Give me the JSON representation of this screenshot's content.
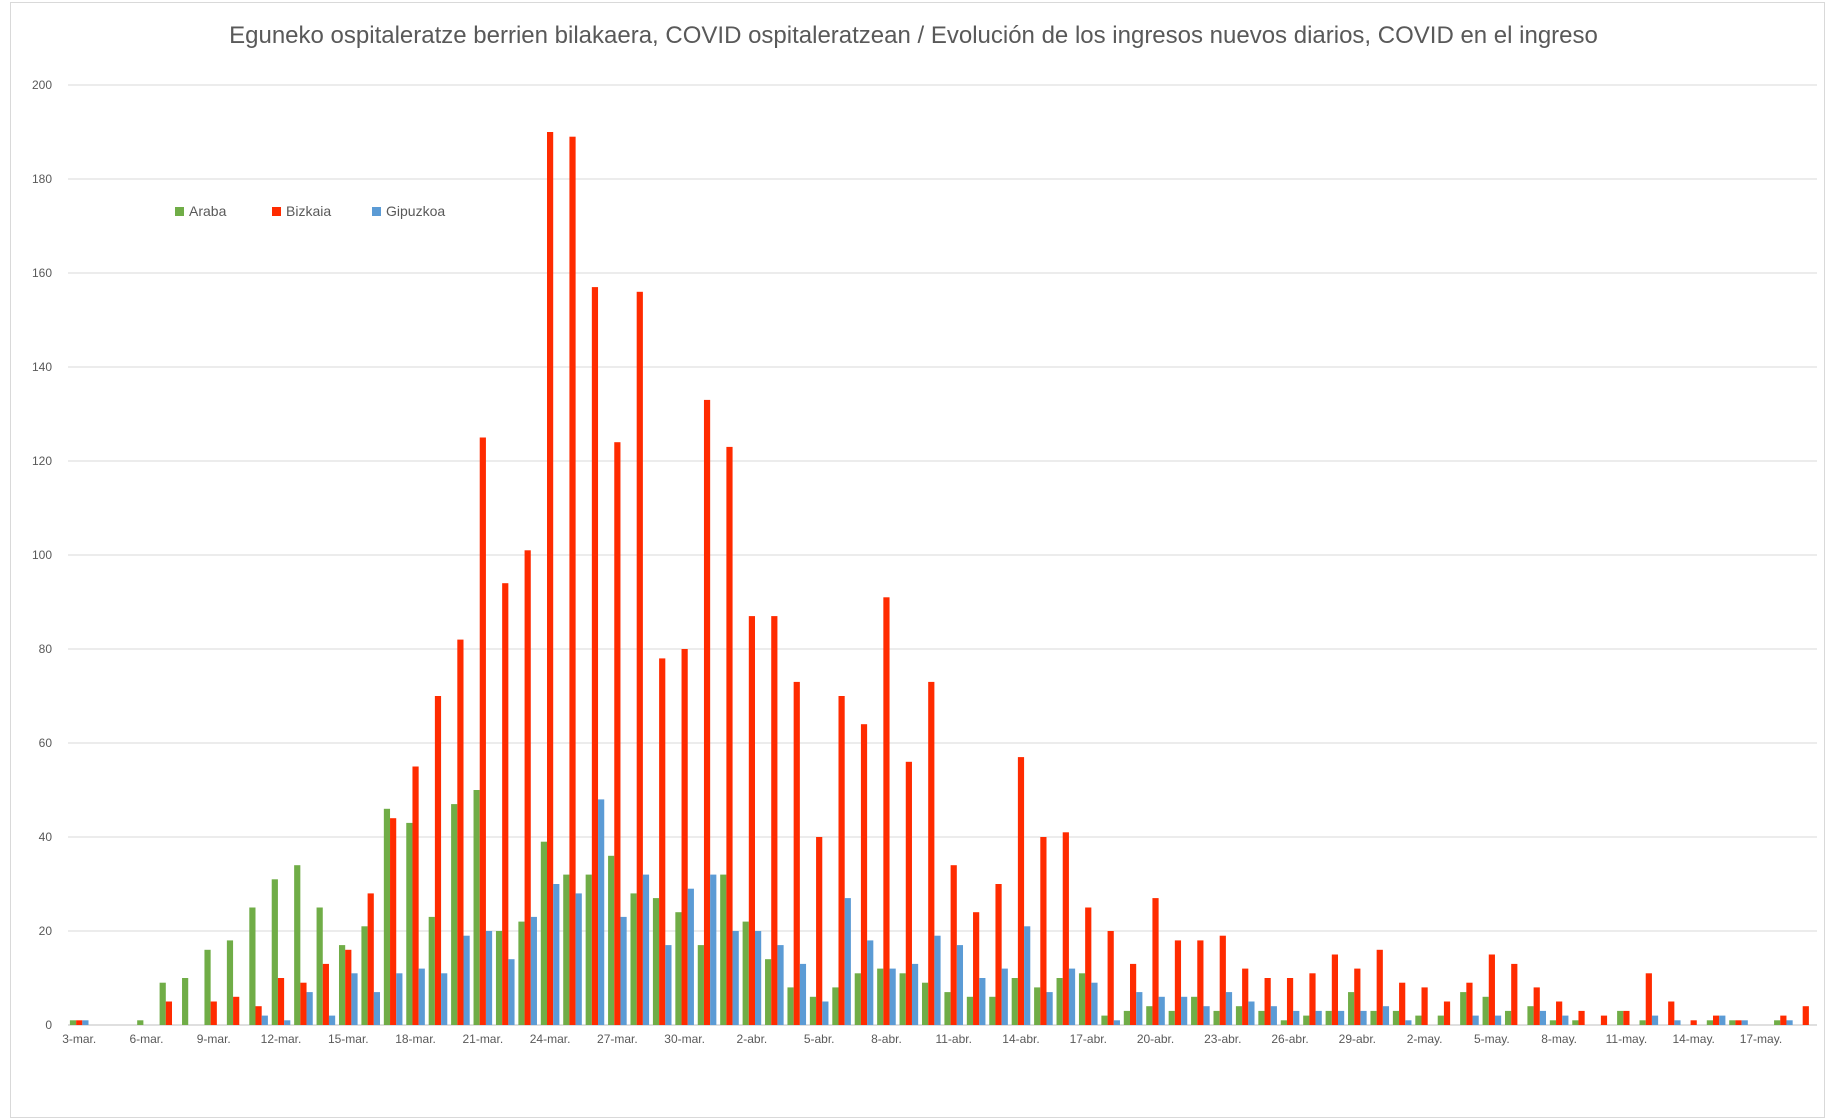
{
  "chart_data": {
    "type": "bar",
    "title": "Eguneko ospitaleratze berrien bilakaera, COVID ospitaleratzean / Evolución de los ingresos nuevos diarios, COVID en el ingreso",
    "xlabel": "",
    "ylabel": "",
    "ylim": [
      0,
      200
    ],
    "yticks": [
      0,
      20,
      40,
      60,
      80,
      100,
      120,
      140,
      160,
      180,
      200
    ],
    "grid": true,
    "legend_position": "top-left",
    "categories": [
      "3-mar.",
      "4-mar.",
      "5-mar.",
      "6-mar.",
      "7-mar.",
      "8-mar.",
      "9-mar.",
      "10-mar.",
      "11-mar.",
      "12-mar.",
      "13-mar.",
      "14-mar.",
      "15-mar.",
      "16-mar.",
      "17-mar.",
      "18-mar.",
      "19-mar.",
      "20-mar.",
      "21-mar.",
      "22-mar.",
      "23-mar.",
      "24-mar.",
      "25-mar.",
      "26-mar.",
      "27-mar.",
      "28-mar.",
      "29-mar.",
      "30-mar.",
      "31-mar.",
      "1-abr.",
      "2-abr.",
      "3-abr.",
      "4-abr.",
      "5-abr.",
      "6-abr.",
      "7-abr.",
      "8-abr.",
      "9-abr.",
      "10-abr.",
      "11-abr.",
      "12-abr.",
      "13-abr.",
      "14-abr.",
      "15-abr.",
      "16-abr.",
      "17-abr.",
      "18-abr.",
      "19-abr.",
      "20-abr.",
      "21-abr.",
      "22-abr.",
      "23-abr.",
      "24-abr.",
      "25-abr.",
      "26-abr.",
      "27-abr.",
      "28-abr.",
      "29-abr.",
      "30-abr.",
      "1-may.",
      "2-may.",
      "3-may.",
      "4-may.",
      "5-may.",
      "6-may.",
      "7-may.",
      "8-may.",
      "9-may.",
      "10-may.",
      "11-may.",
      "12-may.",
      "13-may.",
      "14-may.",
      "15-may.",
      "16-may.",
      "17-may.",
      "18-may.",
      "19-may."
    ],
    "tick_labels": [
      "3-mar.",
      "6-mar.",
      "9-mar.",
      "12-mar.",
      "15-mar.",
      "18-mar.",
      "21-mar.",
      "24-mar.",
      "27-mar.",
      "30-mar.",
      "2-abr.",
      "5-abr.",
      "8-abr.",
      "11-abr.",
      "14-abr.",
      "17-abr.",
      "20-abr.",
      "23-abr.",
      "26-abr.",
      "29-abr.",
      "2-may.",
      "5-may.",
      "8-may.",
      "11-may.",
      "14-may.",
      "17-may."
    ],
    "series": [
      {
        "name": "Araba",
        "color": "#70ad47",
        "values": [
          1,
          0,
          0,
          1,
          9,
          10,
          16,
          18,
          25,
          31,
          34,
          25,
          17,
          21,
          46,
          43,
          23,
          47,
          50,
          20,
          22,
          39,
          32,
          32,
          36,
          28,
          27,
          24,
          17,
          32,
          22,
          14,
          8,
          6,
          8,
          11,
          12,
          11,
          9,
          7,
          6,
          6,
          10,
          8,
          10,
          11,
          2,
          3,
          4,
          3,
          6,
          3,
          4,
          3,
          1,
          2,
          3,
          7,
          3,
          3,
          2,
          2,
          7,
          6,
          3,
          4,
          1,
          1,
          0,
          3,
          1,
          0,
          0,
          1,
          1,
          0,
          1,
          0
        ]
      },
      {
        "name": "Bizkaia",
        "color": "#ff2b00",
        "values": [
          1,
          0,
          0,
          0,
          5,
          0,
          5,
          6,
          4,
          10,
          9,
          13,
          16,
          28,
          44,
          55,
          70,
          82,
          125,
          94,
          101,
          190,
          189,
          157,
          124,
          156,
          78,
          80,
          133,
          123,
          87,
          87,
          73,
          40,
          70,
          64,
          91,
          56,
          73,
          34,
          24,
          30,
          57,
          40,
          41,
          25,
          20,
          13,
          27,
          18,
          18,
          19,
          12,
          10,
          10,
          11,
          15,
          12,
          16,
          9,
          8,
          5,
          9,
          15,
          13,
          8,
          5,
          3,
          2,
          3,
          11,
          5,
          1,
          2,
          1,
          0,
          2,
          4
        ]
      },
      {
        "name": "Gipuzkoa",
        "color": "#5b9bd5",
        "values": [
          1,
          0,
          0,
          0,
          0,
          0,
          0,
          0,
          2,
          1,
          7,
          2,
          11,
          7,
          11,
          12,
          11,
          19,
          20,
          14,
          23,
          30,
          28,
          48,
          23,
          32,
          17,
          29,
          32,
          20,
          20,
          17,
          13,
          5,
          27,
          18,
          12,
          13,
          19,
          17,
          10,
          12,
          21,
          7,
          12,
          9,
          1,
          7,
          6,
          6,
          4,
          7,
          5,
          4,
          3,
          3,
          3,
          3,
          4,
          1,
          0,
          0,
          2,
          2,
          0,
          3,
          2,
          0,
          0,
          0,
          2,
          1,
          0,
          2,
          1,
          0,
          1,
          0
        ]
      }
    ]
  }
}
